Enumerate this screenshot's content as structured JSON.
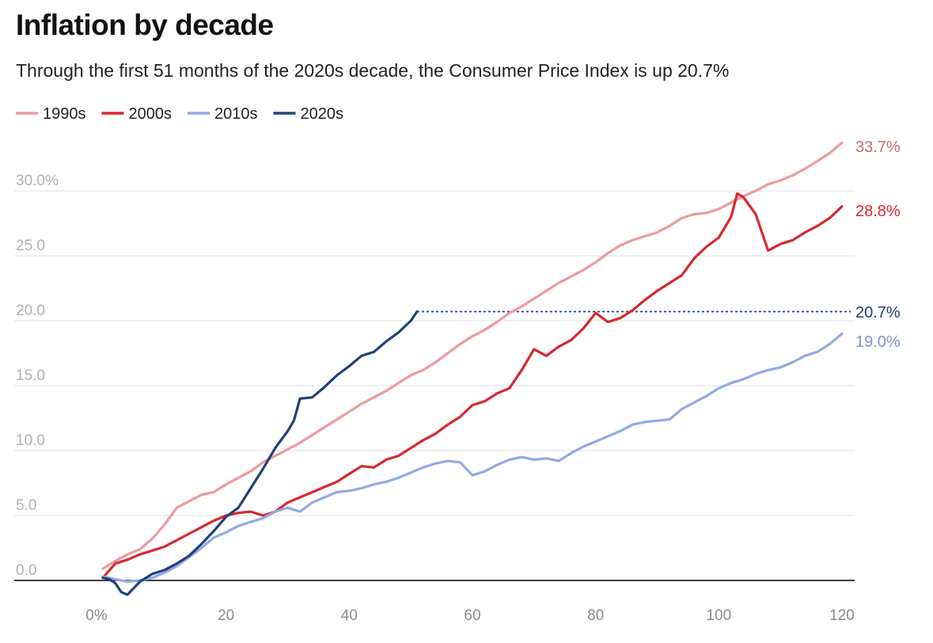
{
  "chart_data": {
    "type": "line",
    "title": "Inflation by decade",
    "subtitle": "Through the first 51 months of the 2020s decade, the Consumer Price Index is up 20.7%",
    "xlabel": "",
    "ylabel": "",
    "xlim": [
      0,
      120
    ],
    "ylim": [
      0,
      34
    ],
    "grid": true,
    "legend_position": "top-left",
    "x_ticks": [
      {
        "value": 0,
        "label": "0%"
      },
      {
        "value": 20,
        "label": "20"
      },
      {
        "value": 40,
        "label": "40"
      },
      {
        "value": 60,
        "label": "60"
      },
      {
        "value": 80,
        "label": "80"
      },
      {
        "value": 100,
        "label": "100"
      },
      {
        "value": 120,
        "label": "120"
      }
    ],
    "y_ticks": [
      {
        "value": 0,
        "label": "0.0"
      },
      {
        "value": 5,
        "label": "5.0"
      },
      {
        "value": 10,
        "label": "10.0"
      },
      {
        "value": 15,
        "label": "15.0"
      },
      {
        "value": 20,
        "label": "20.0"
      },
      {
        "value": 25,
        "label": "25.0"
      },
      {
        "value": 30,
        "label": "30.0%"
      }
    ],
    "reference_line": {
      "series": "2020s",
      "y": 20.7,
      "x_from": 51,
      "x_to": 120,
      "style": "dotted"
    },
    "series": [
      {
        "name": "1990s",
        "color": "#ee9a9f",
        "end_label": "33.7%",
        "points": [
          [
            0,
            0.9
          ],
          [
            2,
            1.5
          ],
          [
            4,
            2.0
          ],
          [
            6,
            2.4
          ],
          [
            8,
            3.2
          ],
          [
            10,
            4.3
          ],
          [
            12,
            5.6
          ],
          [
            14,
            6.1
          ],
          [
            16,
            6.6
          ],
          [
            18,
            6.8
          ],
          [
            20,
            7.4
          ],
          [
            22,
            7.9
          ],
          [
            24,
            8.4
          ],
          [
            26,
            9.1
          ],
          [
            28,
            9.6
          ],
          [
            30,
            10.1
          ],
          [
            32,
            10.6
          ],
          [
            34,
            11.2
          ],
          [
            36,
            11.8
          ],
          [
            38,
            12.4
          ],
          [
            40,
            13.0
          ],
          [
            42,
            13.6
          ],
          [
            44,
            14.1
          ],
          [
            46,
            14.6
          ],
          [
            48,
            15.2
          ],
          [
            50,
            15.8
          ],
          [
            52,
            16.2
          ],
          [
            54,
            16.8
          ],
          [
            56,
            17.5
          ],
          [
            58,
            18.2
          ],
          [
            60,
            18.8
          ],
          [
            62,
            19.3
          ],
          [
            64,
            19.9
          ],
          [
            66,
            20.6
          ],
          [
            68,
            21.1
          ],
          [
            70,
            21.7
          ],
          [
            72,
            22.3
          ],
          [
            74,
            22.9
          ],
          [
            76,
            23.4
          ],
          [
            78,
            23.9
          ],
          [
            80,
            24.5
          ],
          [
            82,
            25.2
          ],
          [
            84,
            25.8
          ],
          [
            86,
            26.2
          ],
          [
            88,
            26.5
          ],
          [
            90,
            26.8
          ],
          [
            92,
            27.3
          ],
          [
            94,
            27.9
          ],
          [
            96,
            28.2
          ],
          [
            98,
            28.3
          ],
          [
            100,
            28.6
          ],
          [
            102,
            29.1
          ],
          [
            104,
            29.6
          ],
          [
            106,
            30.0
          ],
          [
            108,
            30.5
          ],
          [
            110,
            30.8
          ],
          [
            112,
            31.2
          ],
          [
            114,
            31.7
          ],
          [
            116,
            32.3
          ],
          [
            118,
            32.9
          ],
          [
            120,
            33.7
          ]
        ]
      },
      {
        "name": "2000s",
        "color": "#d7282f",
        "end_label": "28.8%",
        "points": [
          [
            0,
            0.2
          ],
          [
            2,
            1.3
          ],
          [
            4,
            1.6
          ],
          [
            6,
            2.0
          ],
          [
            8,
            2.3
          ],
          [
            10,
            2.6
          ],
          [
            12,
            3.1
          ],
          [
            14,
            3.6
          ],
          [
            16,
            4.1
          ],
          [
            18,
            4.6
          ],
          [
            20,
            5.0
          ],
          [
            22,
            5.2
          ],
          [
            24,
            5.3
          ],
          [
            26,
            5.0
          ],
          [
            28,
            5.3
          ],
          [
            30,
            6.0
          ],
          [
            32,
            6.4
          ],
          [
            34,
            6.8
          ],
          [
            36,
            7.2
          ],
          [
            38,
            7.6
          ],
          [
            40,
            8.2
          ],
          [
            42,
            8.8
          ],
          [
            44,
            8.7
          ],
          [
            46,
            9.3
          ],
          [
            48,
            9.6
          ],
          [
            50,
            10.2
          ],
          [
            52,
            10.8
          ],
          [
            54,
            11.3
          ],
          [
            56,
            12.0
          ],
          [
            58,
            12.6
          ],
          [
            60,
            13.5
          ],
          [
            62,
            13.8
          ],
          [
            64,
            14.4
          ],
          [
            66,
            14.8
          ],
          [
            68,
            16.2
          ],
          [
            70,
            17.8
          ],
          [
            72,
            17.3
          ],
          [
            74,
            18.0
          ],
          [
            76,
            18.5
          ],
          [
            78,
            19.4
          ],
          [
            80,
            20.6
          ],
          [
            82,
            19.9
          ],
          [
            84,
            20.2
          ],
          [
            86,
            20.8
          ],
          [
            88,
            21.6
          ],
          [
            90,
            22.3
          ],
          [
            92,
            22.9
          ],
          [
            94,
            23.5
          ],
          [
            96,
            24.8
          ],
          [
            98,
            25.7
          ],
          [
            100,
            26.4
          ],
          [
            102,
            28.0
          ],
          [
            103,
            29.8
          ],
          [
            104,
            29.5
          ],
          [
            106,
            28.2
          ],
          [
            108,
            25.4
          ],
          [
            110,
            25.9
          ],
          [
            112,
            26.2
          ],
          [
            114,
            26.8
          ],
          [
            116,
            27.3
          ],
          [
            118,
            27.9
          ],
          [
            120,
            28.8
          ]
        ]
      },
      {
        "name": "2010s",
        "color": "#93a9e6",
        "end_label": "19.0%",
        "points": [
          [
            0,
            0.3
          ],
          [
            2,
            0.1
          ],
          [
            4,
            -0.1
          ],
          [
            6,
            0.0
          ],
          [
            8,
            0.2
          ],
          [
            10,
            0.6
          ],
          [
            12,
            1.1
          ],
          [
            14,
            1.8
          ],
          [
            16,
            2.5
          ],
          [
            18,
            3.3
          ],
          [
            20,
            3.7
          ],
          [
            22,
            4.2
          ],
          [
            24,
            4.5
          ],
          [
            26,
            4.8
          ],
          [
            28,
            5.3
          ],
          [
            30,
            5.6
          ],
          [
            32,
            5.3
          ],
          [
            34,
            6.0
          ],
          [
            36,
            6.4
          ],
          [
            38,
            6.8
          ],
          [
            40,
            6.9
          ],
          [
            42,
            7.1
          ],
          [
            44,
            7.4
          ],
          [
            46,
            7.6
          ],
          [
            48,
            7.9
          ],
          [
            50,
            8.3
          ],
          [
            52,
            8.7
          ],
          [
            54,
            9.0
          ],
          [
            56,
            9.2
          ],
          [
            58,
            9.1
          ],
          [
            60,
            8.1
          ],
          [
            62,
            8.4
          ],
          [
            64,
            8.9
          ],
          [
            66,
            9.3
          ],
          [
            68,
            9.5
          ],
          [
            70,
            9.3
          ],
          [
            72,
            9.4
          ],
          [
            74,
            9.2
          ],
          [
            76,
            9.8
          ],
          [
            78,
            10.3
          ],
          [
            80,
            10.7
          ],
          [
            82,
            11.1
          ],
          [
            84,
            11.5
          ],
          [
            86,
            12.0
          ],
          [
            88,
            12.2
          ],
          [
            90,
            12.3
          ],
          [
            92,
            12.4
          ],
          [
            94,
            13.2
          ],
          [
            96,
            13.7
          ],
          [
            98,
            14.2
          ],
          [
            100,
            14.8
          ],
          [
            102,
            15.2
          ],
          [
            104,
            15.5
          ],
          [
            106,
            15.9
          ],
          [
            108,
            16.2
          ],
          [
            110,
            16.4
          ],
          [
            112,
            16.8
          ],
          [
            114,
            17.3
          ],
          [
            116,
            17.6
          ],
          [
            118,
            18.2
          ],
          [
            120,
            19.0
          ]
        ]
      },
      {
        "name": "2020s",
        "color": "#22417a",
        "end_label": "20.7%",
        "points": [
          [
            0,
            0.2
          ],
          [
            1,
            0.1
          ],
          [
            2,
            -0.2
          ],
          [
            3,
            -0.9
          ],
          [
            4,
            -1.1
          ],
          [
            5,
            -0.6
          ],
          [
            6,
            -0.1
          ],
          [
            8,
            0.5
          ],
          [
            10,
            0.8
          ],
          [
            12,
            1.3
          ],
          [
            14,
            1.9
          ],
          [
            16,
            2.8
          ],
          [
            18,
            3.8
          ],
          [
            20,
            4.9
          ],
          [
            22,
            5.6
          ],
          [
            24,
            7.1
          ],
          [
            26,
            8.6
          ],
          [
            28,
            10.2
          ],
          [
            30,
            11.5
          ],
          [
            31,
            12.3
          ],
          [
            32,
            14.0
          ],
          [
            34,
            14.1
          ],
          [
            36,
            14.9
          ],
          [
            38,
            15.8
          ],
          [
            40,
            16.5
          ],
          [
            42,
            17.3
          ],
          [
            44,
            17.6
          ],
          [
            46,
            18.4
          ],
          [
            48,
            19.1
          ],
          [
            50,
            20.0
          ],
          [
            51,
            20.7
          ]
        ]
      }
    ]
  }
}
